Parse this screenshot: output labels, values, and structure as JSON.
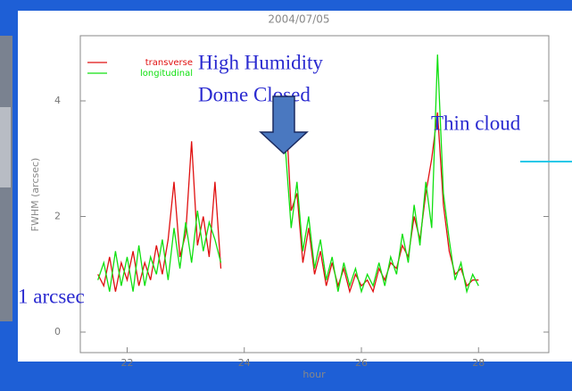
{
  "chart_data": {
    "type": "line",
    "title": "2004/07/05",
    "xlabel": "hour",
    "ylabel": "FWHM (arcsec)",
    "x": [
      21.5,
      21.6,
      21.7,
      21.8,
      21.9,
      22.0,
      22.1,
      22.2,
      22.3,
      22.4,
      22.5,
      22.6,
      22.7,
      22.8,
      22.9,
      23.0,
      23.1,
      23.2,
      23.3,
      23.4,
      23.5,
      23.6,
      24.0,
      24.7,
      24.8,
      24.9,
      25.0,
      25.1,
      25.2,
      25.3,
      25.4,
      25.5,
      25.6,
      25.7,
      25.8,
      25.9,
      26.0,
      26.1,
      26.2,
      26.3,
      26.4,
      26.5,
      26.6,
      26.7,
      26.8,
      26.9,
      27.0,
      27.1,
      27.2,
      27.3,
      27.4,
      27.5,
      27.6,
      27.7,
      27.8,
      27.9,
      28.0
    ],
    "series": [
      {
        "name": "transverse",
        "color": "#e01010",
        "values": [
          1.0,
          0.8,
          1.3,
          0.7,
          1.2,
          0.9,
          1.4,
          0.8,
          1.2,
          0.9,
          1.5,
          1.0,
          1.6,
          2.6,
          1.3,
          1.7,
          3.3,
          1.5,
          2.0,
          1.3,
          2.6,
          1.1,
          null,
          4.0,
          2.1,
          2.4,
          1.2,
          1.8,
          1.0,
          1.4,
          0.8,
          1.2,
          0.8,
          1.1,
          0.7,
          1.0,
          0.8,
          0.9,
          0.7,
          1.1,
          0.9,
          1.2,
          1.1,
          1.5,
          1.3,
          2.0,
          1.6,
          2.4,
          3.0,
          3.8,
          2.2,
          1.4,
          1.0,
          1.1,
          0.8,
          0.9,
          0.9
        ]
      },
      {
        "name": "longitudinal",
        "color": "#10e010",
        "values": [
          0.9,
          1.2,
          0.7,
          1.4,
          0.8,
          1.3,
          0.7,
          1.5,
          0.8,
          1.3,
          1.0,
          1.6,
          0.9,
          1.8,
          1.1,
          1.9,
          1.2,
          2.1,
          1.4,
          1.9,
          1.6,
          1.2,
          null,
          3.2,
          1.8,
          2.6,
          1.4,
          2.0,
          1.1,
          1.6,
          0.9,
          1.3,
          0.7,
          1.2,
          0.8,
          1.1,
          0.7,
          1.0,
          0.8,
          1.2,
          0.8,
          1.3,
          1.0,
          1.7,
          1.2,
          2.2,
          1.5,
          2.6,
          1.8,
          4.8,
          2.4,
          1.6,
          0.9,
          1.2,
          0.7,
          1.0,
          0.8
        ]
      }
    ],
    "xlim": [
      21.2,
      29.2
    ],
    "xticks": [
      22,
      24,
      26,
      28
    ],
    "ylim": [
      0,
      5
    ],
    "yticks": [
      0,
      2,
      4
    ],
    "legend": "upper left",
    "annotations": [
      "High Humidity",
      "Dome Closed",
      "Thin cloud",
      "1 arcsec"
    ]
  }
}
